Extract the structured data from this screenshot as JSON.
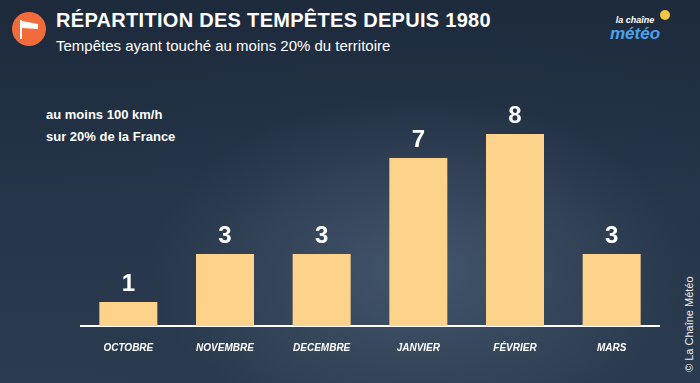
{
  "chart_data": {
    "type": "bar",
    "title": "RÉPARTITION DES TEMPÊTES DEPUIS 1980",
    "subtitle": "Tempêtes ayant touché au moins 20% du territoire",
    "annotations": [
      "au moins 100 km/h",
      "sur 20% de la France"
    ],
    "logo": [
      "la chaîne",
      "météo"
    ],
    "credit": "© La Chaîne Météo",
    "categories": [
      "OCTOBRE",
      "NOVEMBRE",
      "DECEMBRE",
      "JANVIER",
      "FÉVRIER",
      "MARS"
    ],
    "values": [
      1,
      3,
      3,
      7,
      8,
      3
    ],
    "color": "#fdd38b",
    "ylim": [
      0,
      8
    ],
    "grid": false,
    "legend": false,
    "data_labels": true,
    "tick_labels": "x"
  }
}
